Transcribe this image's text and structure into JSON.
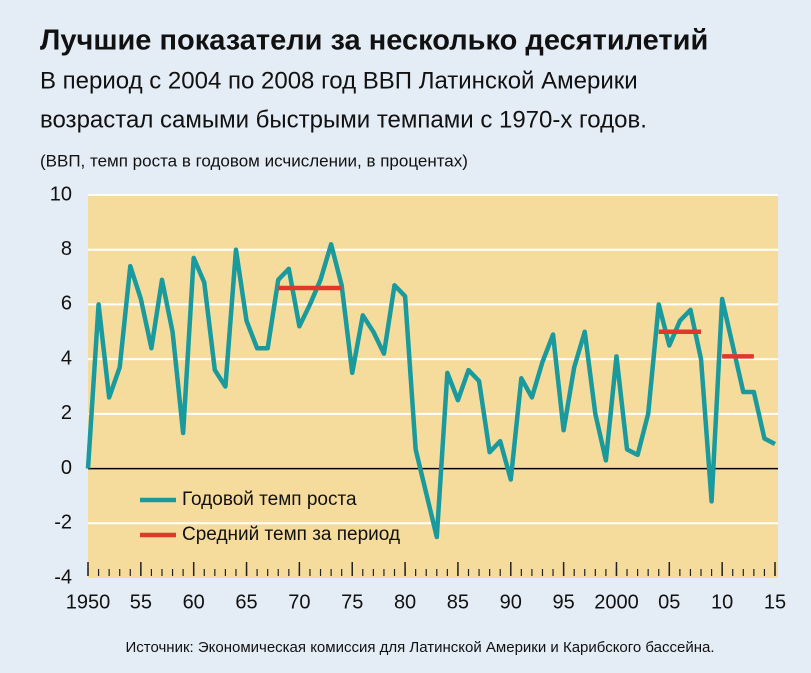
{
  "chart_data": {
    "type": "line",
    "title": "Лучшие показатели за несколько десятилетий",
    "subtitle": [
      "В период с 2004 по 2008 год ВВП Латинской Америки",
      "возрастал самыми быстрыми темпами с 1970-х годов."
    ],
    "y_axis_label": "(ВВП, темп роста в годовом исчислении, в процентах)",
    "source": "Источник: Экономическая комиссия для Латинской Америки и Карибского бассейна.",
    "x": [
      1950,
      1951,
      1952,
      1953,
      1954,
      1955,
      1956,
      1957,
      1958,
      1959,
      1960,
      1961,
      1962,
      1963,
      1964,
      1965,
      1966,
      1967,
      1968,
      1969,
      1970,
      1971,
      1972,
      1973,
      1974,
      1975,
      1976,
      1977,
      1978,
      1979,
      1980,
      1981,
      1982,
      1983,
      1984,
      1985,
      1986,
      1987,
      1988,
      1989,
      1990,
      1991,
      1992,
      1993,
      1994,
      1995,
      1996,
      1997,
      1998,
      1999,
      2000,
      2001,
      2002,
      2003,
      2004,
      2005,
      2006,
      2007,
      2008,
      2009,
      2010,
      2011,
      2012,
      2013,
      2014,
      2015
    ],
    "series": [
      {
        "name": "Годовой темп роста",
        "color": "#1a9a9c",
        "values": [
          0.0,
          6.0,
          2.6,
          3.7,
          7.4,
          6.2,
          4.4,
          6.9,
          5.0,
          1.3,
          7.7,
          6.8,
          3.6,
          3.0,
          8.0,
          5.4,
          4.4,
          4.4,
          6.9,
          7.3,
          5.2,
          6.0,
          6.9,
          8.2,
          6.7,
          3.5,
          5.6,
          5.0,
          4.2,
          6.7,
          6.3,
          0.7,
          -0.9,
          -2.5,
          3.5,
          2.5,
          3.6,
          3.2,
          0.6,
          1.0,
          -0.4,
          3.3,
          2.6,
          3.9,
          4.9,
          1.4,
          3.7,
          5.0,
          2.0,
          0.3,
          4.1,
          0.7,
          0.5,
          2.0,
          6.0,
          4.5,
          5.4,
          5.8,
          4.0,
          -1.2,
          6.2,
          4.5,
          2.8,
          2.8,
          1.1,
          0.9
        ]
      }
    ],
    "period_averages": {
      "name": "Средний темп за период",
      "color": "#e0392b",
      "periods": [
        {
          "start": 1968,
          "end": 1974,
          "value": 6.6
        },
        {
          "start": 2004,
          "end": 2008,
          "value": 5.0
        },
        {
          "start": 2010,
          "end": 2013,
          "value": 4.1
        }
      ]
    },
    "xlim": [
      1950,
      2015
    ],
    "xticks": [
      1950,
      {
        "value": 1955,
        "label": "55"
      },
      {
        "value": 1960,
        "label": "60"
      },
      {
        "value": 1965,
        "label": "65"
      },
      {
        "value": 1970,
        "label": "70"
      },
      {
        "value": 1975,
        "label": "75"
      },
      {
        "value": 1980,
        "label": "80"
      },
      {
        "value": 1985,
        "label": "85"
      },
      {
        "value": 1990,
        "label": "90"
      },
      {
        "value": 1995,
        "label": "95"
      },
      2000,
      {
        "value": 2005,
        "label": "05"
      },
      {
        "value": 2010,
        "label": "10"
      },
      {
        "value": 2015,
        "label": "15"
      }
    ],
    "ylim": [
      -4,
      10
    ],
    "yticks": [
      -4,
      -2,
      0,
      2,
      4,
      6,
      8,
      10
    ],
    "grid": true
  }
}
